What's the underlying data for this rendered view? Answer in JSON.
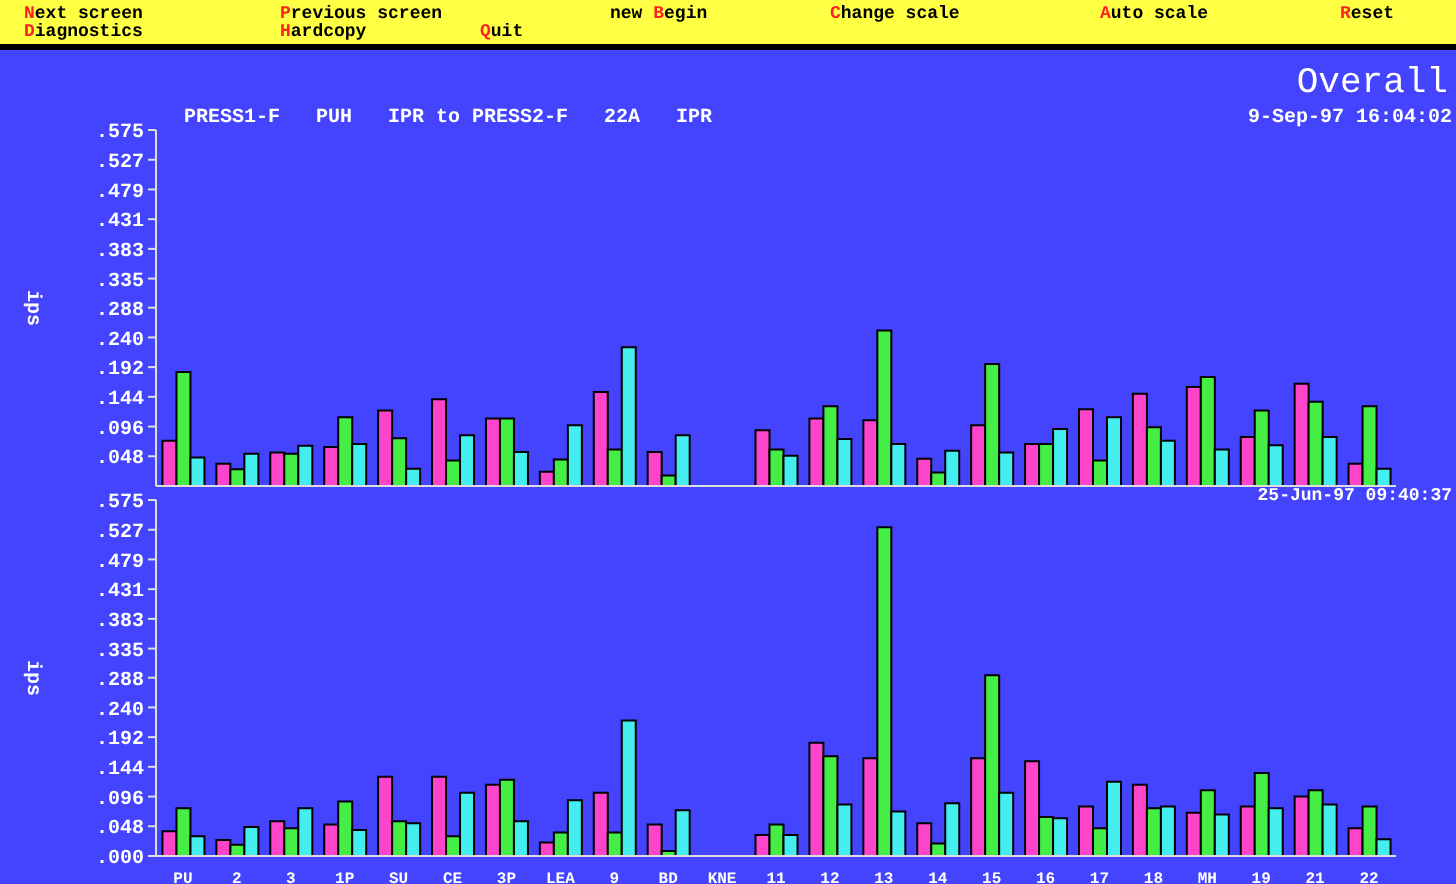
{
  "chart_data": [
    {
      "type": "bar",
      "title": "Overall",
      "subtitle": "PRESS1-F   PUH   IPR to PRESS2-F   22A   IPR",
      "ylabel": "ips",
      "annotations": [
        "9-Sep-97 16:04:02",
        "Next screen",
        "Previous screen",
        "new Begin",
        "Change scale",
        "Auto scale",
        "Reset",
        "Diagnostics",
        "Hardcopy",
        "Quit"
      ],
      "categories": [
        null,
        null,
        null,
        null,
        null,
        null,
        null,
        null,
        null,
        null,
        null,
        null,
        null,
        null,
        null,
        null,
        null,
        null,
        null,
        null,
        null,
        null,
        null
      ],
      "series": [
        {
          "color": "#ff44cc",
          "values": [
            0.073,
            0.036,
            0.054,
            0.063,
            0.122,
            0.14,
            0.109,
            0.023,
            0.152,
            0.055,
            null,
            0.09,
            0.109,
            0.106,
            0.044,
            0.098,
            0.068,
            0.124,
            0.149,
            0.16,
            0.079,
            0.165,
            0.036
          ]
        },
        {
          "color": "#44ee44",
          "values": [
            0.184,
            0.027,
            0.052,
            0.111,
            0.077,
            0.041,
            0.109,
            0.043,
            0.059,
            0.017,
            null,
            0.059,
            0.129,
            0.251,
            0.022,
            0.197,
            0.068,
            0.041,
            0.095,
            0.176,
            0.122,
            0.136,
            0.129
          ]
        },
        {
          "color": "#44eeee",
          "values": [
            0.046,
            0.052,
            0.065,
            0.068,
            0.028,
            0.082,
            0.055,
            0.098,
            0.224,
            0.082,
            null,
            0.049,
            0.076,
            0.068,
            0.057,
            0.054,
            0.092,
            0.111,
            0.073,
            0.059,
            0.066,
            0.079,
            0.028
          ]
        }
      ],
      "ylim": [
        0,
        0.575
      ],
      "yticks": [
        {
          "value": 0.575,
          "label": ".575"
        },
        {
          "value": 0.527,
          "label": ".527"
        },
        {
          "value": 0.479,
          "label": ".479"
        },
        {
          "value": 0.431,
          "label": ".431"
        },
        {
          "value": 0.383,
          "label": ".383"
        },
        {
          "value": 0.335,
          "label": ".335"
        },
        {
          "value": 0.288,
          "label": ".288"
        },
        {
          "value": 0.24,
          "label": ".240"
        },
        {
          "value": 0.192,
          "label": ".192"
        },
        {
          "value": 0.144,
          "label": ".144"
        },
        {
          "value": 0.096,
          "label": ".096"
        },
        {
          "value": 0.048,
          "label": ".048"
        }
      ],
      "tick_labels": "y"
    },
    {
      "type": "bar",
      "ylabel": "ips",
      "annotations": [
        "25-Jun-97 09:40:37"
      ],
      "categories": [
        "PU",
        "2",
        "3",
        "1P",
        "SU",
        "CE",
        "3P",
        "LEA",
        "9",
        "BD",
        "KNE",
        "11",
        "12",
        "13",
        "14",
        "15",
        "16",
        "17",
        "18",
        "MH",
        "19",
        "21",
        "22"
      ],
      "series": [
        {
          "color": "#ff44cc",
          "values": [
            0.04,
            0.026,
            0.056,
            0.051,
            0.128,
            0.128,
            0.115,
            0.022,
            0.102,
            0.051,
            null,
            0.034,
            0.183,
            0.158,
            0.053,
            0.158,
            0.153,
            0.08,
            0.115,
            0.07,
            0.08,
            0.096,
            0.045
          ]
        },
        {
          "color": "#44ee44",
          "values": [
            0.077,
            0.018,
            0.045,
            0.088,
            0.056,
            0.032,
            0.123,
            0.038,
            0.038,
            0.008,
            null,
            0.051,
            0.161,
            0.531,
            0.02,
            0.292,
            0.063,
            0.045,
            0.077,
            0.106,
            0.134,
            0.106,
            0.08
          ]
        },
        {
          "color": "#44eeee",
          "values": [
            0.032,
            0.047,
            0.077,
            0.042,
            0.053,
            0.102,
            0.056,
            0.09,
            0.219,
            0.074,
            null,
            0.034,
            0.083,
            0.072,
            0.085,
            0.102,
            0.061,
            0.12,
            0.08,
            0.067,
            0.077,
            0.083,
            0.027
          ]
        }
      ],
      "ylim": [
        0,
        0.575
      ],
      "yticks": [
        {
          "value": 0.575,
          "label": ".575"
        },
        {
          "value": 0.527,
          "label": ".527"
        },
        {
          "value": 0.479,
          "label": ".479"
        },
        {
          "value": 0.431,
          "label": ".431"
        },
        {
          "value": 0.383,
          "label": ".383"
        },
        {
          "value": 0.335,
          "label": ".335"
        },
        {
          "value": 0.288,
          "label": ".288"
        },
        {
          "value": 0.24,
          "label": ".240"
        },
        {
          "value": 0.192,
          "label": ".192"
        },
        {
          "value": 0.144,
          "label": ".144"
        },
        {
          "value": 0.096,
          "label": ".096"
        },
        {
          "value": 0.048,
          "label": ".048"
        },
        {
          "value": 0,
          "label": ".000"
        }
      ]
    }
  ]
}
